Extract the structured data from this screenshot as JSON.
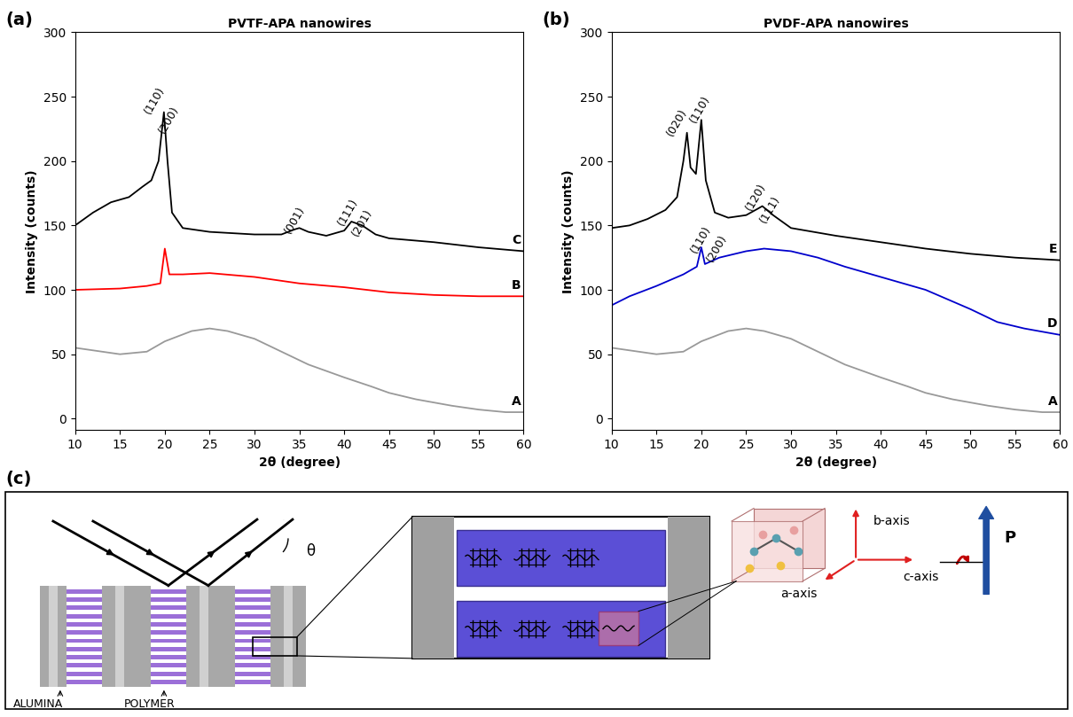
{
  "chart_data": [
    {
      "type": "line",
      "panel": "(a)",
      "title": "PVTF-APA nanowires",
      "x_label": "2θ (degree)",
      "y_label": "Intensity (counts)",
      "xlim": [
        10,
        60
      ],
      "xticks": [
        10,
        15,
        20,
        25,
        30,
        35,
        40,
        45,
        50,
        55,
        60
      ],
      "ylim": [
        -9,
        300
      ],
      "yticks": [
        0,
        50,
        100,
        150,
        200,
        250,
        300
      ],
      "series": [
        {
          "name": "A",
          "color": "#999999",
          "x": [
            10,
            12,
            15,
            18,
            20,
            23,
            25,
            27,
            30,
            33,
            36,
            40,
            43,
            45,
            48,
            52,
            55,
            58,
            60
          ],
          "values": [
            55,
            53,
            50,
            52,
            60,
            68,
            70,
            68,
            62,
            52,
            42,
            32,
            25,
            20,
            15,
            10,
            7,
            5,
            5
          ]
        },
        {
          "name": "B",
          "color": "#ff0000",
          "x": [
            10,
            15,
            18,
            19.5,
            20.0,
            20.5,
            22,
            25,
            30,
            35,
            40,
            45,
            50,
            55,
            60
          ],
          "values": [
            100,
            101,
            103,
            105,
            132,
            112,
            112,
            113,
            110,
            105,
            102,
            98,
            96,
            95,
            95
          ]
        },
        {
          "name": "C",
          "color": "#000000",
          "x": [
            10,
            12,
            14,
            16,
            17.5,
            18.5,
            19.3,
            19.9,
            20.3,
            20.8,
            22,
            25,
            30,
            33,
            34.5,
            35,
            36,
            38,
            40,
            40.8,
            42,
            43.5,
            45,
            50,
            55,
            60
          ],
          "values": [
            150,
            160,
            168,
            172,
            180,
            185,
            200,
            238,
            200,
            160,
            148,
            145,
            143,
            143,
            147,
            148,
            145,
            142,
            146,
            153,
            150,
            143,
            140,
            137,
            133,
            130
          ]
        }
      ],
      "annotations": [
        {
          "text": "(110)",
          "x": 19.4,
          "y": 245
        },
        {
          "text": "(200)",
          "x": 21.0,
          "y": 230
        },
        {
          "text": "(001)",
          "x": 35.0,
          "y": 152
        },
        {
          "text": "(111)",
          "x": 41.0,
          "y": 158
        },
        {
          "text": "(201)",
          "x": 42.6,
          "y": 150
        }
      ]
    },
    {
      "type": "line",
      "panel": "(b)",
      "title": "PVDF-APA nanowires",
      "x_label": "2θ (degree)",
      "y_label": "Intensity (counts)",
      "xlim": [
        10,
        60
      ],
      "xticks": [
        10,
        15,
        20,
        25,
        30,
        35,
        40,
        45,
        50,
        55,
        60
      ],
      "ylim": [
        -9,
        300
      ],
      "yticks": [
        0,
        50,
        100,
        150,
        200,
        250,
        300
      ],
      "series": [
        {
          "name": "A",
          "color": "#999999",
          "x": [
            10,
            12,
            15,
            18,
            20,
            23,
            25,
            27,
            30,
            33,
            36,
            40,
            43,
            45,
            48,
            52,
            55,
            58,
            60
          ],
          "values": [
            55,
            53,
            50,
            52,
            60,
            68,
            70,
            68,
            62,
            52,
            42,
            32,
            25,
            20,
            15,
            10,
            7,
            5,
            5
          ]
        },
        {
          "name": "D",
          "color": "#0000cc",
          "x": [
            10,
            12,
            15,
            18,
            19.5,
            20.0,
            20.4,
            22,
            25,
            27,
            30,
            33,
            36,
            40,
            45,
            50,
            53,
            56,
            60
          ],
          "values": [
            88,
            95,
            103,
            112,
            118,
            133,
            120,
            125,
            130,
            132,
            130,
            125,
            118,
            110,
            100,
            85,
            75,
            70,
            65
          ]
        },
        {
          "name": "E",
          "color": "#000000",
          "x": [
            10,
            12,
            14,
            16,
            17.3,
            18.0,
            18.4,
            18.8,
            19.4,
            20.0,
            20.5,
            21.5,
            23,
            25,
            26.3,
            26.8,
            28,
            30,
            35,
            40,
            45,
            50,
            55,
            60
          ],
          "values": [
            148,
            150,
            155,
            162,
            172,
            200,
            222,
            195,
            190,
            232,
            185,
            160,
            156,
            158,
            163,
            165,
            158,
            148,
            142,
            137,
            132,
            128,
            125,
            123
          ]
        }
      ],
      "annotations": [
        {
          "text": "(020)",
          "x": 17.8,
          "y": 228
        },
        {
          "text": "(110)",
          "x": 20.4,
          "y": 238
        },
        {
          "text": "(120)",
          "x": 26.6,
          "y": 170
        },
        {
          "text": "(111)",
          "x": 28.2,
          "y": 160
        },
        {
          "text": "(110)",
          "x": 20.5,
          "y": 137
        },
        {
          "text": "(200)",
          "x": 22.3,
          "y": 130
        }
      ]
    }
  ],
  "diagram": {
    "panel": "(c)",
    "labels": {
      "alumina": "ALUMINA",
      "polymer": "POLYMER",
      "angle": "θ",
      "a_axis": "a-axis",
      "b_axis": "b-axis",
      "c_axis": "c-axis",
      "polarization": "P"
    }
  }
}
